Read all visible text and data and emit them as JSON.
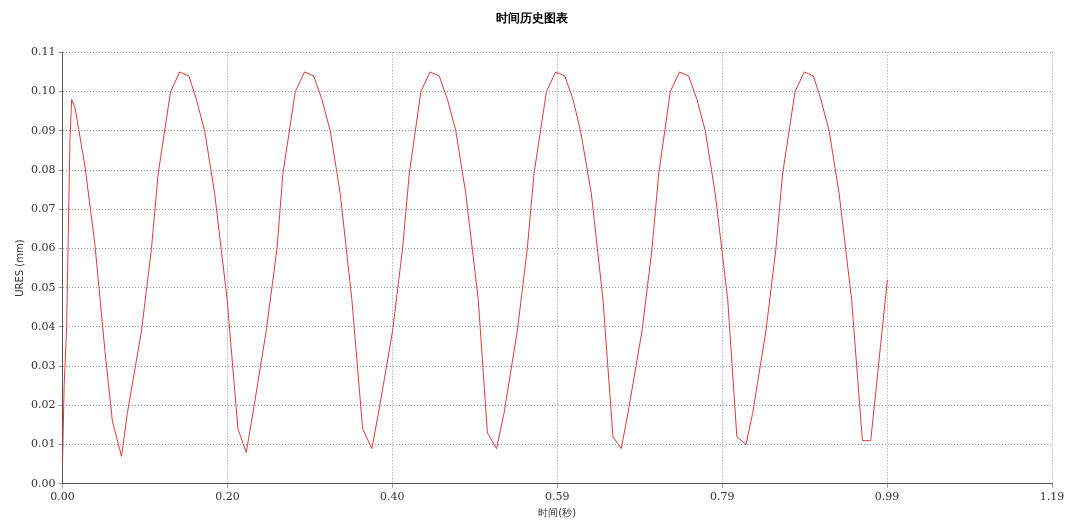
{
  "chart_data": {
    "type": "line",
    "title": "时间历史图表",
    "xlabel": "时间(秒)",
    "ylabel": "URES (mm)",
    "xlim": [
      0,
      1.19
    ],
    "xticks": [
      {
        "value": 0,
        "label": "0.00"
      },
      {
        "value": 0.1983,
        "label": "0.20"
      },
      {
        "value": 0.3967,
        "label": "0.40"
      },
      {
        "value": 0.595,
        "label": "0.59"
      },
      {
        "value": 0.7933,
        "label": "0.79"
      },
      {
        "value": 0.9917,
        "label": "0.99"
      },
      {
        "value": 1.19,
        "label": "1.19"
      }
    ],
    "ylim": [
      0,
      0.11
    ],
    "yticks": [
      {
        "value": 0,
        "label": "0.00"
      },
      {
        "value": 0.01,
        "label": "0.01"
      },
      {
        "value": 0.02,
        "label": "0.02"
      },
      {
        "value": 0.03,
        "label": "0.03"
      },
      {
        "value": 0.04,
        "label": "0.04"
      },
      {
        "value": 0.05,
        "label": "0.05"
      },
      {
        "value": 0.06,
        "label": "0.06"
      },
      {
        "value": 0.07,
        "label": "0.07"
      },
      {
        "value": 0.08,
        "label": "0.08"
      },
      {
        "value": 0.09,
        "label": "0.09"
      },
      {
        "value": 0.1,
        "label": "0.10"
      },
      {
        "value": 0.11,
        "label": "0.11"
      }
    ],
    "grid": true,
    "legend": false,
    "marker": "none",
    "line_style": "solid",
    "series": [
      {
        "color": "#e03a3a",
        "x": [
          0,
          0.002,
          0.005,
          0.009,
          0.011,
          0.015,
          0.027,
          0.039,
          0.051,
          0.06,
          0.071,
          0.078,
          0.095,
          0.107,
          0.115,
          0.13,
          0.141,
          0.152,
          0.161,
          0.171,
          0.183,
          0.198,
          0.211,
          0.221,
          0.229,
          0.245,
          0.258,
          0.265,
          0.28,
          0.291,
          0.302,
          0.312,
          0.322,
          0.334,
          0.348,
          0.361,
          0.372,
          0.38,
          0.397,
          0.409,
          0.417,
          0.431,
          0.442,
          0.453,
          0.463,
          0.473,
          0.485,
          0.5,
          0.511,
          0.522,
          0.531,
          0.547,
          0.559,
          0.567,
          0.582,
          0.593,
          0.604,
          0.614,
          0.623,
          0.636,
          0.65,
          0.662,
          0.672,
          0.68,
          0.697,
          0.709,
          0.717,
          0.731,
          0.742,
          0.753,
          0.763,
          0.773,
          0.785,
          0.8,
          0.811,
          0.822,
          0.83,
          0.846,
          0.858,
          0.866,
          0.881,
          0.892,
          0.903,
          0.912,
          0.922,
          0.934,
          0.949,
          0.962,
          0.972,
          0.992
        ],
        "values": [
          0.005,
          0.025,
          0.04,
          0.088,
          0.098,
          0.096,
          0.081,
          0.061,
          0.034,
          0.016,
          0.007,
          0.018,
          0.039,
          0.06,
          0.079,
          0.1,
          0.105,
          0.104,
          0.098,
          0.09,
          0.074,
          0.047,
          0.014,
          0.008,
          0.018,
          0.039,
          0.06,
          0.079,
          0.1,
          0.105,
          0.104,
          0.098,
          0.09,
          0.074,
          0.047,
          0.014,
          0.009,
          0.018,
          0.039,
          0.06,
          0.079,
          0.1,
          0.105,
          0.104,
          0.098,
          0.09,
          0.074,
          0.047,
          0.013,
          0.009,
          0.018,
          0.039,
          0.06,
          0.079,
          0.1,
          0.105,
          0.104,
          0.098,
          0.09,
          0.074,
          0.047,
          0.012,
          0.009,
          0.018,
          0.039,
          0.06,
          0.079,
          0.1,
          0.105,
          0.104,
          0.098,
          0.09,
          0.074,
          0.047,
          0.012,
          0.01,
          0.018,
          0.039,
          0.06,
          0.079,
          0.1,
          0.105,
          0.104,
          0.098,
          0.09,
          0.074,
          0.047,
          0.011,
          0.011,
          0.052
        ]
      }
    ]
  }
}
